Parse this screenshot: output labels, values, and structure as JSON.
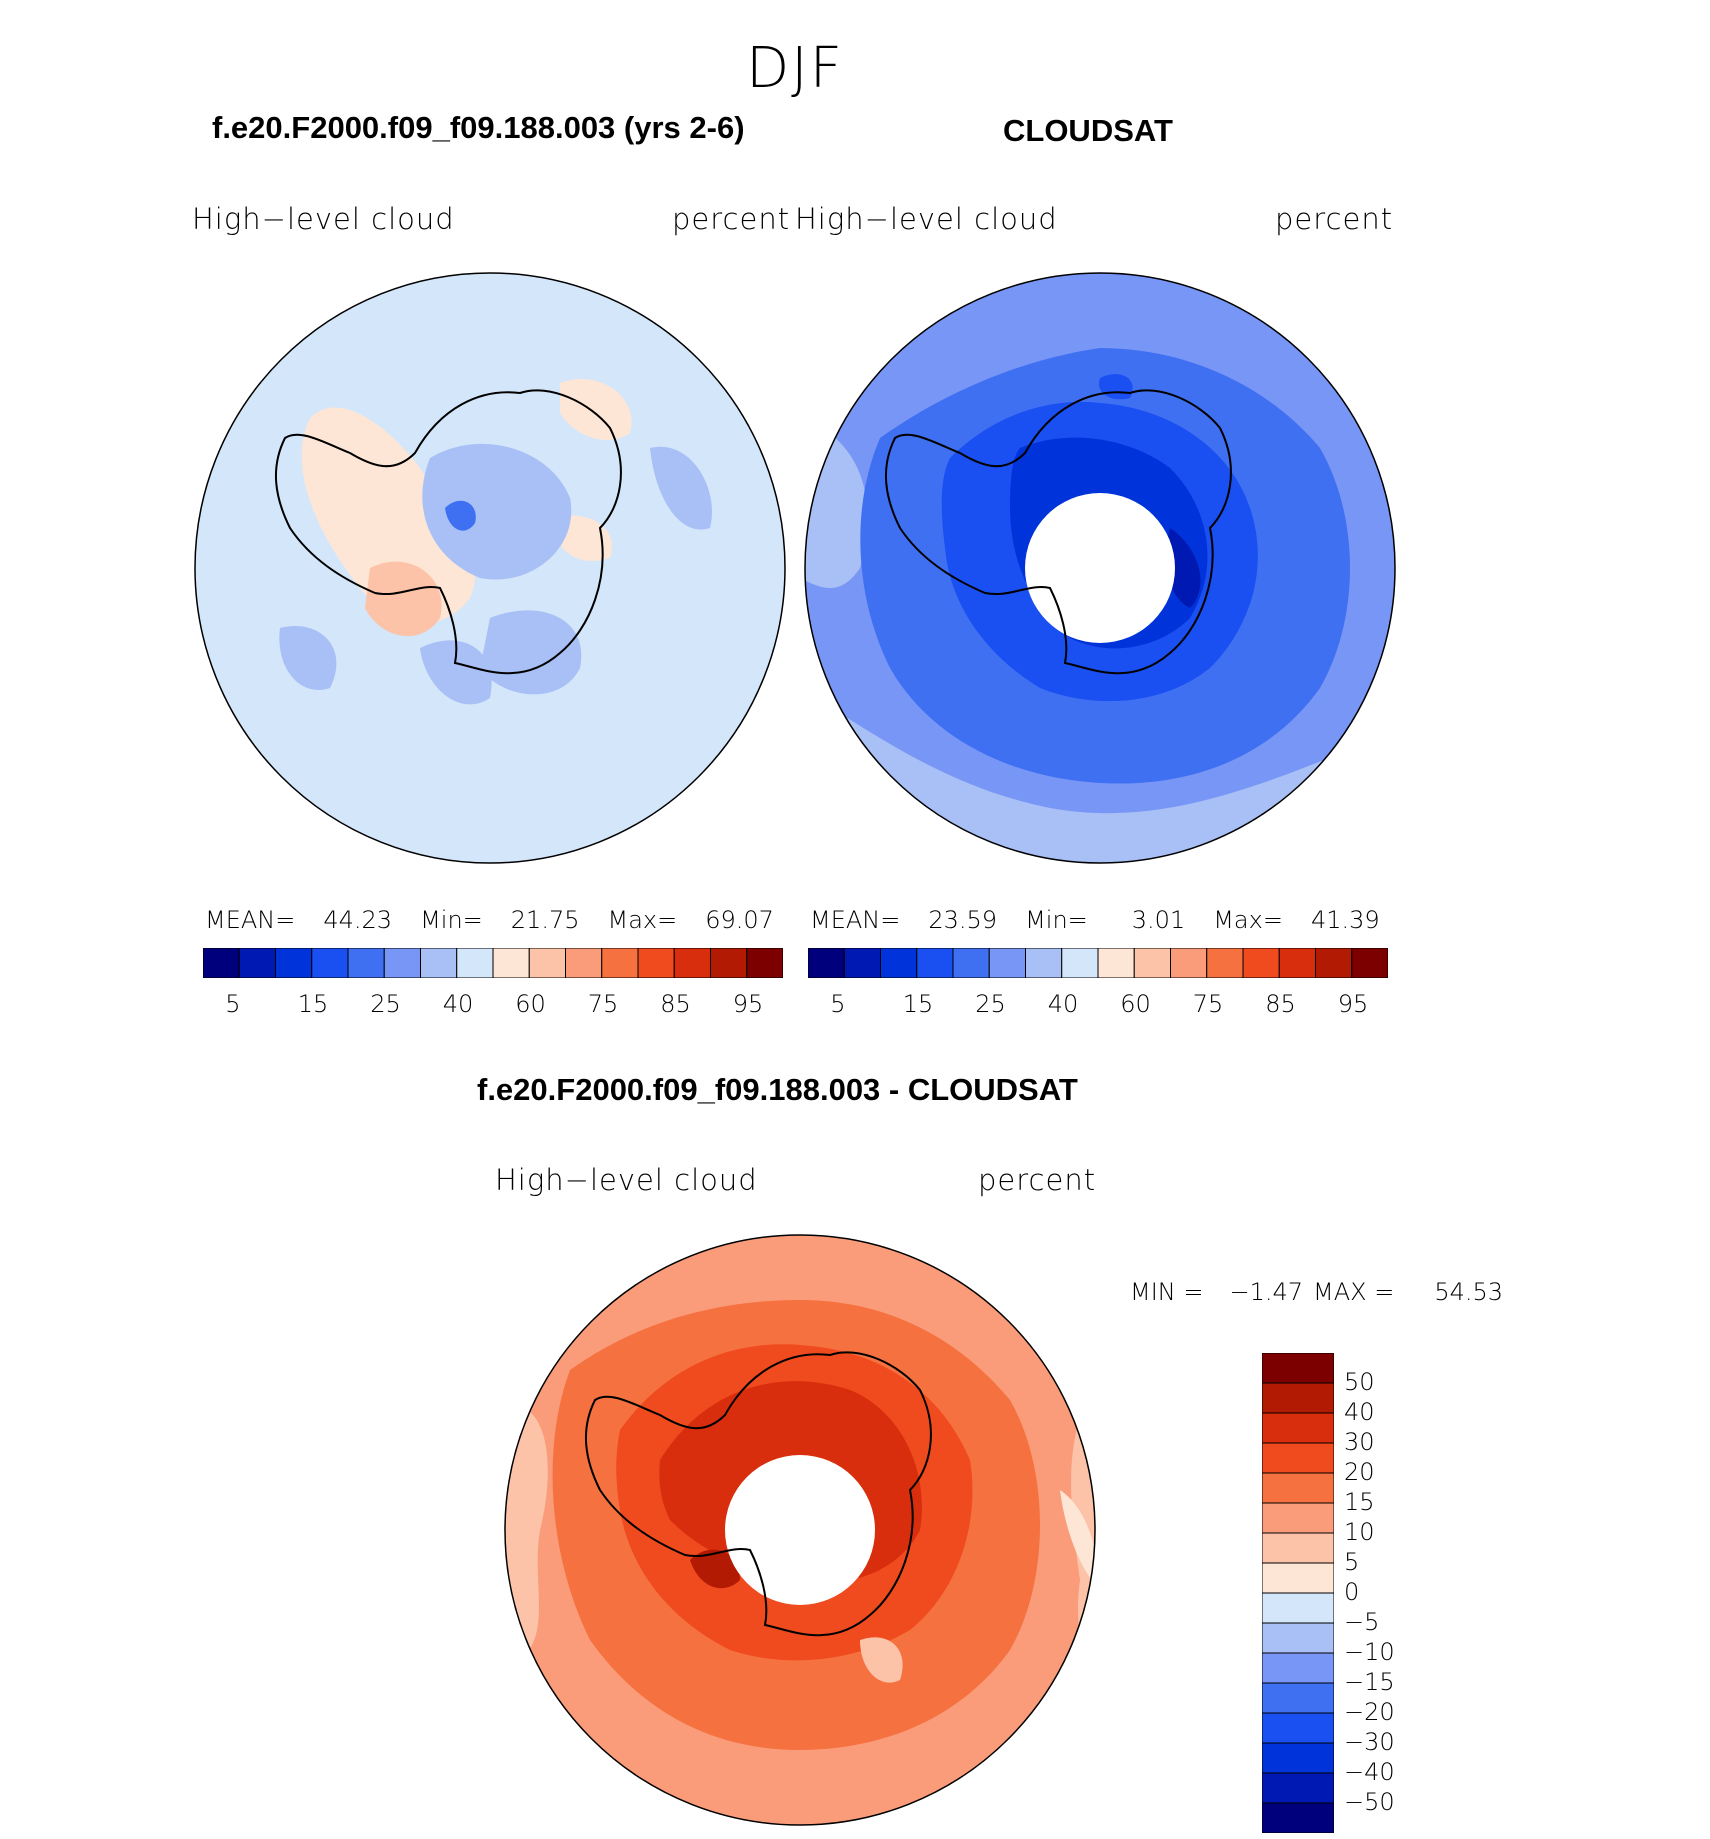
{
  "season": "DJF",
  "panels": [
    {
      "title": "f.e20.F2000.f09_f09.188.003 (yrs 2-6)",
      "variable": "High−level cloud",
      "units": "percent",
      "stats": {
        "mean_label": "MEAN=",
        "mean": "44.23",
        "min_label": "Min=",
        "min": "21.75",
        "max_label": "Max=",
        "max": "69.07"
      }
    },
    {
      "title": "CLOUDSAT",
      "variable": "High−level cloud",
      "units": "percent",
      "stats": {
        "mean_label": "MEAN=",
        "mean": "23.59",
        "min_label": "Min=",
        "min": "3.01",
        "max_label": "Max=",
        "max": "41.39"
      }
    }
  ],
  "absolute_colorbar": {
    "colors": [
      "#00007d",
      "#0019b2",
      "#0033d9",
      "#1a4ff2",
      "#4070f2",
      "#7896f5",
      "#a8c0f5",
      "#d4e6fa",
      "#fde6d6",
      "#fcc3a8",
      "#fa9c7a",
      "#f57240",
      "#f04a1f",
      "#d92e0d",
      "#b21a04",
      "#7d0000"
    ],
    "tick_labels": [
      "5",
      "15",
      "25",
      "40",
      "60",
      "75",
      "85",
      "95"
    ]
  },
  "difference": {
    "title": "f.e20.F2000.f09_f09.188.003 - CLOUDSAT",
    "variable": "High−level cloud",
    "units": "percent",
    "stats": {
      "min_label": "MIN =",
      "min": "−1.47",
      "max_label": "MAX =",
      "max": "54.53"
    }
  },
  "difference_colorbar": {
    "colors_top_to_bottom": [
      "#7d0000",
      "#b21a04",
      "#d92e0d",
      "#f04a1f",
      "#f57240",
      "#fa9c7a",
      "#fcc3a8",
      "#fde6d6",
      "#d4e6fa",
      "#a8c0f5",
      "#7896f5",
      "#4070f2",
      "#1a4ff2",
      "#0033d9",
      "#0019b2",
      "#00007d"
    ],
    "tick_labels": [
      "50",
      "40",
      "30",
      "20",
      "15",
      "10",
      "5",
      "0",
      "−5",
      "−10",
      "−15",
      "−20",
      "−30",
      "−40",
      "−50"
    ]
  }
}
